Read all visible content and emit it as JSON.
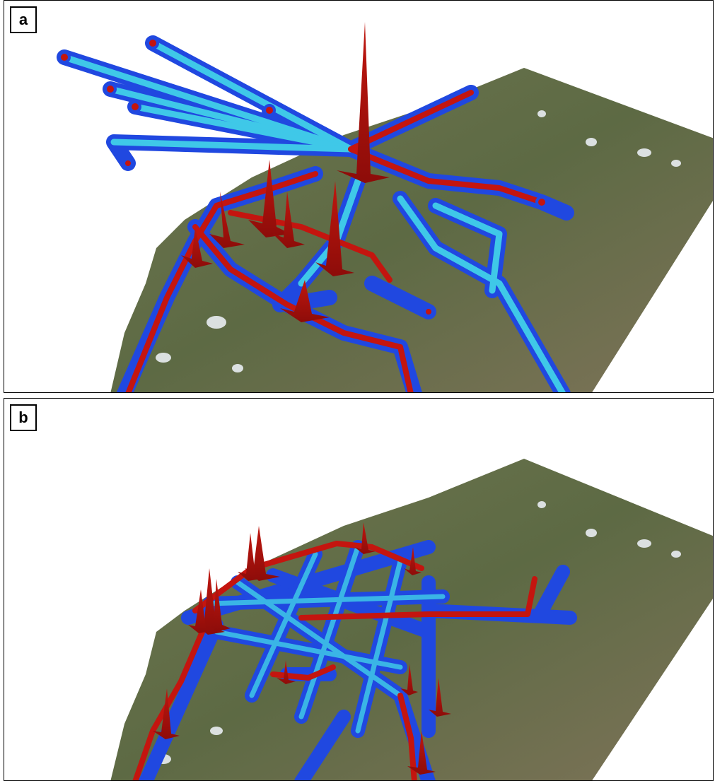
{
  "panels": [
    {
      "label": "a"
    },
    {
      "label": "b"
    }
  ],
  "colors": {
    "terrain_green": "#5e6b45",
    "terrain_light": "#8d8a6d",
    "snow": "#e9edf2",
    "low_density": "#1f4fe0",
    "mid_density": "#39c6e8",
    "transition": "#f2e45a",
    "high_density": "#b5140f"
  },
  "icons": {
    "panel_label_frame": "square-frame"
  }
}
